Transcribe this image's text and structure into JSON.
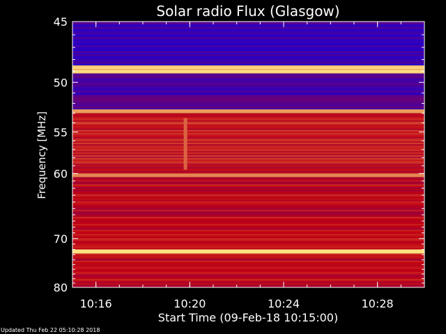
{
  "chart_data": {
    "type": "heatmap",
    "title": "Solar radio Flux (Glasgow)",
    "xlabel": "Start Time (09-Feb-18 10:15:00)",
    "ylabel": "Frequency [MHz]",
    "x_unit": "minutes",
    "xlim": [
      "10:15:00",
      "10:30:00"
    ],
    "ylim": [
      45,
      80
    ],
    "x_ticks": [
      "10:16",
      "10:20",
      "10:24",
      "10:28"
    ],
    "y_ticks": [
      45,
      50,
      55,
      60,
      70,
      80
    ],
    "y_scale": "reciprocal",
    "grid": false,
    "colors": {
      "background": "#000000",
      "low": "#1a00d8",
      "mid": "#c00010",
      "high": "#ffe080"
    },
    "bands": [
      {
        "freq_start": 45.0,
        "freq_end": 48.5,
        "level": 0.1
      },
      {
        "freq_start": 48.5,
        "freq_end": 49.2,
        "level": 1.0
      },
      {
        "freq_start": 49.2,
        "freq_end": 52.6,
        "level": 0.15
      },
      {
        "freq_start": 52.6,
        "freq_end": 53.0,
        "level": 0.85
      },
      {
        "freq_start": 53.0,
        "freq_end": 60.0,
        "level": 0.55
      },
      {
        "freq_start": 60.0,
        "freq_end": 60.5,
        "level": 0.8
      },
      {
        "freq_start": 60.5,
        "freq_end": 72.0,
        "level": 0.5
      },
      {
        "freq_start": 72.0,
        "freq_end": 72.8,
        "level": 1.0
      },
      {
        "freq_start": 72.8,
        "freq_end": 80.0,
        "level": 0.5
      }
    ],
    "burst": {
      "time": "10:19:48",
      "freq_start": 53.5,
      "freq_end": 59.5
    }
  },
  "footer": {
    "updated_text": "Updated Thu Feb 22 05:10:28 2018"
  }
}
